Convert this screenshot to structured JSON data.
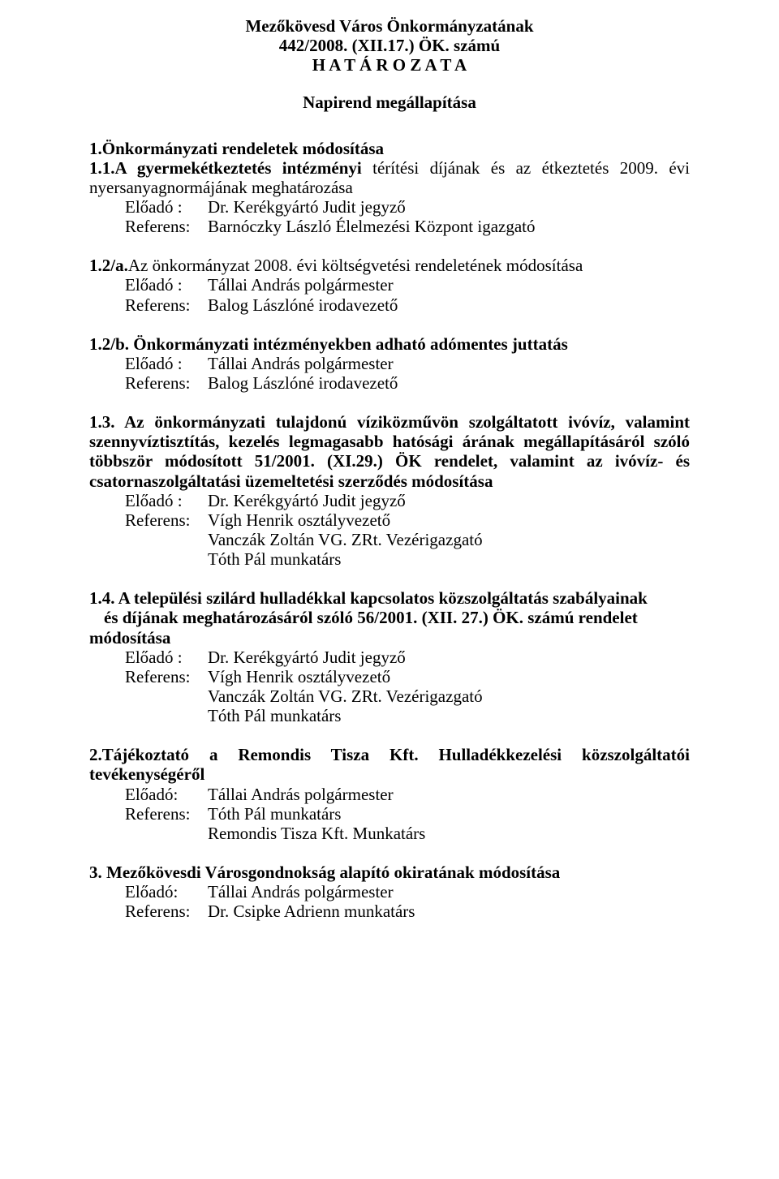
{
  "header": {
    "line1": "Mezőkövesd Város Önkormányzatának",
    "line2": "442/2008. (XII.17.) ÖK. számú",
    "line3": "H A T Á R O Z A T A",
    "subtitle": "Napirend megállapítása"
  },
  "labels": {
    "eloado": "Előadó  :",
    "eloado2": "Előadó:",
    "referens": "Referens:"
  },
  "items": [
    {
      "title_bold": "1.Önkormányzati rendeletek módosítása",
      "lines_html": [
        {
          "b": "1.1.A gyermekétkeztetés intézményi ",
          "n": "térítési díjának és az étkeztetés 2009. évi nyersanyagnormájának meghatározása"
        }
      ],
      "roles": [
        {
          "label": "eloado",
          "value": "Dr. Kerékgyártó Judit jegyző"
        },
        {
          "label": "referens",
          "value": "Barnóczky László Élelmezési Központ igazgató"
        }
      ]
    },
    {
      "lines_html": [
        {
          "b": "1.2/a.",
          "n": "Az önkormányzat 2008. évi költségvetési rendeletének módosítása"
        }
      ],
      "roles": [
        {
          "label": "eloado",
          "value": "Tállai András polgármester"
        },
        {
          "label": "referens",
          "value": "Balog Lászlóné irodavezető"
        }
      ]
    },
    {
      "lines_html": [
        {
          "b": "1.2/b. Önkormányzati intézményekben adható adómentes juttatás",
          "n": ""
        }
      ],
      "roles": [
        {
          "label": "eloado",
          "value": "Tállai András polgármester"
        },
        {
          "label": "referens",
          "value": "Balog Lászlóné irodavezető"
        }
      ]
    },
    {
      "lines_html": [
        {
          "b": "1.3. Az önkormányzati tulajdonú víziközművön szolgáltatott ivóvíz, valamint szennyvíztisztítás, kezelés legmagasabb hatósági árának  megállapításáról szóló többször módosított 51/2001. (XI.29.) ÖK rendelet, valamint az ivóvíz- és csatornaszolgáltatási üzemeltetési szerződés  módosítása",
          "n": ""
        }
      ],
      "roles": [
        {
          "label": "eloado",
          "value": "Dr. Kerékgyártó Judit jegyző"
        },
        {
          "label": "referens",
          "value": "Vígh Henrik osztályvezető"
        },
        {
          "label": "",
          "value": "Vanczák Zoltán VG. ZRt. Vezérigazgató"
        },
        {
          "label": "",
          "value": "Tóth Pál munkatárs"
        }
      ]
    },
    {
      "lines_html": [
        {
          "b": "1.4. A települési szilárd hulladékkal kapcsolatos közszolgáltatás szabályainak",
          "n": ""
        }
      ],
      "indent_bold": "és díjának meghatározásáról szóló 56/2001. (XII. 27.) ÖK. számú rendelet",
      "post_bold": "módosítása",
      "roles": [
        {
          "label": "eloado",
          "value": "Dr. Kerékgyártó Judit jegyző"
        },
        {
          "label": "referens",
          "value": "Vígh Henrik osztályvezető"
        },
        {
          "label": "",
          "value": "Vanczák Zoltán VG. ZRt. Vezérigazgató"
        },
        {
          "label": "",
          "value": "Tóth Pál munkatárs"
        }
      ]
    },
    {
      "lines_html": [
        {
          "b": "2.Tájékoztató a Remondis Tisza Kft. Hulladékkezelési közszolgáltatói tevékenységéről",
          "n": ""
        }
      ],
      "justify_wide": true,
      "roles": [
        {
          "label": "eloado2",
          "value": "Tállai András polgármester"
        },
        {
          "label": "referens",
          "value": "Tóth Pál munkatárs"
        },
        {
          "label": "",
          "value": "Remondis Tisza Kft. Munkatárs"
        }
      ]
    },
    {
      "lines_html": [
        {
          "b": "3. Mezőkövesdi Városgondnokság alapító okiratának módosítása",
          "n": ""
        }
      ],
      "roles": [
        {
          "label": "eloado2",
          "value": "Tállai András polgármester"
        },
        {
          "label": "referens",
          "value": "Dr. Csipke Adrienn munkatárs"
        }
      ]
    }
  ]
}
